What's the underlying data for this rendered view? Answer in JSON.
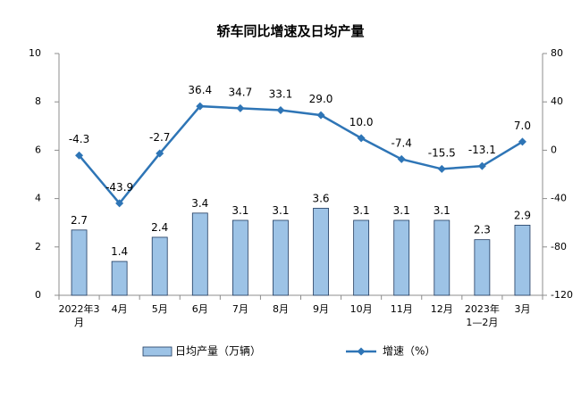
{
  "chart_data": {
    "type": "bar+line",
    "title": "轿车同比增速及日均产量",
    "categories": [
      "2022年3月",
      "4月",
      "5月",
      "6月",
      "7月",
      "8月",
      "9月",
      "10月",
      "11月",
      "12月",
      "2023年1—2月",
      "3月"
    ],
    "series": [
      {
        "name": "日均产量（万辆）",
        "type": "bar",
        "axis": "left",
        "color": "#9DC3E6",
        "values": [
          2.7,
          1.4,
          2.4,
          3.4,
          3.1,
          3.1,
          3.6,
          3.1,
          3.1,
          3.1,
          2.3,
          2.9
        ]
      },
      {
        "name": "增速（%）",
        "type": "line",
        "axis": "right",
        "color": "#2E75B6",
        "values": [
          -4.3,
          -43.9,
          -2.7,
          36.4,
          34.7,
          33.1,
          29.0,
          10.0,
          -7.4,
          -15.5,
          -13.1,
          7.0
        ]
      }
    ],
    "left_axis": {
      "range": [
        0,
        10
      ],
      "ticks": [
        "0",
        "2",
        "4",
        "6",
        "8",
        "10"
      ]
    },
    "right_axis": {
      "range": [
        -120,
        80
      ],
      "ticks": [
        "-120",
        "-80",
        "-40",
        "0",
        "40",
        "80"
      ]
    },
    "bar_labels": [
      "2.7",
      "1.4",
      "2.4",
      "3.4",
      "3.1",
      "3.1",
      "3.6",
      "3.1",
      "3.1",
      "3.1",
      "2.3",
      "2.9"
    ],
    "line_labels": [
      "-4.3",
      "-43.9",
      "-2.7",
      "36.4",
      "34.7",
      "33.1",
      "29.0",
      "10.0",
      "-7.4",
      "-15.5",
      "-13.1",
      "7.0"
    ],
    "legend_position": "bottom",
    "grid": false
  }
}
